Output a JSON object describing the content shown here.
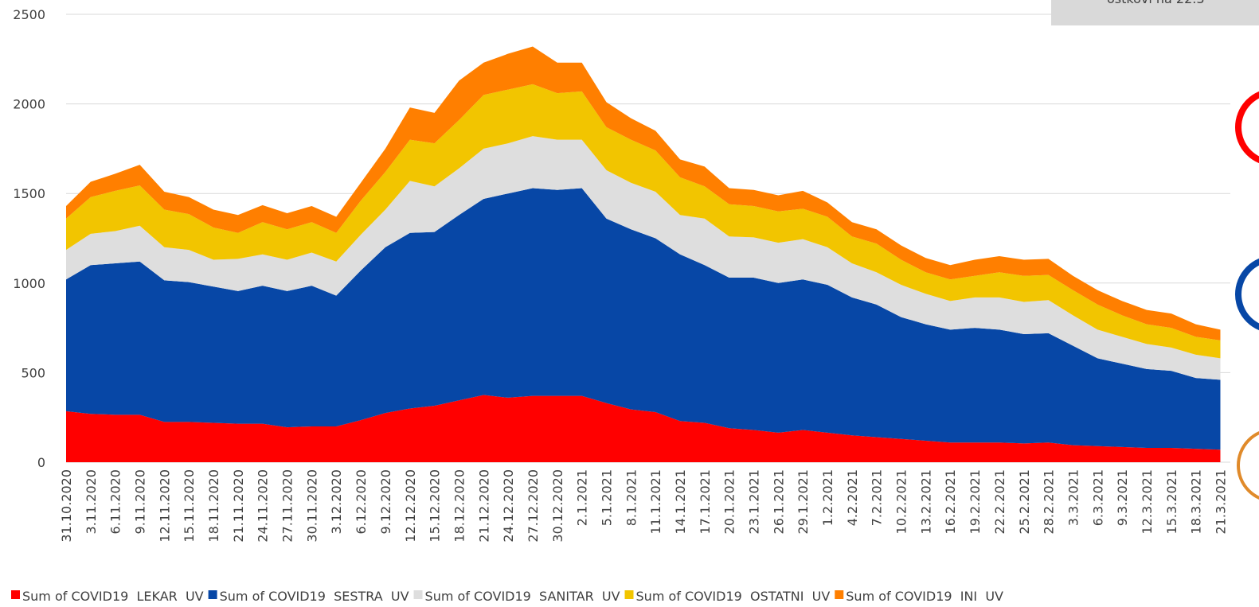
{
  "chart_data": {
    "type": "stacked_area",
    "annotation": "ostkovi na 22.3",
    "categories": [
      "31.10.2020",
      "3.11.2020",
      "6.11.2020",
      "9.11.2020",
      "12.11.2020",
      "15.11.2020",
      "18.11.2020",
      "21.11.2020",
      "24.11.2020",
      "27.11.2020",
      "30.11.2020",
      "3.12.2020",
      "6.12.2020",
      "9.12.2020",
      "12.12.2020",
      "15.12.2020",
      "18.12.2020",
      "21.12.2020",
      "24.12.2020",
      "27.12.2020",
      "30.12.2020",
      "2.1.2021",
      "5.1.2021",
      "8.1.2021",
      "11.1.2021",
      "14.1.2021",
      "17.1.2021",
      "20.1.2021",
      "23.1.2021",
      "26.1.2021",
      "29.1.2021",
      "1.2.2021",
      "4.2.2021",
      "7.2.2021",
      "10.2.2021",
      "13.2.2021",
      "16.2.2021",
      "19.2.2021",
      "22.2.2021",
      "25.2.2021",
      "28.2.2021",
      "3.3.2021",
      "6.3.2021",
      "9.3.2021",
      "12.3.2021",
      "15.3.2021",
      "18.3.2021",
      "21.3.2021"
    ],
    "series": [
      {
        "name": "Sum of COVID19  LEKAR  UV",
        "color": "#ff0000",
        "values": [
          285,
          270,
          265,
          265,
          225,
          225,
          220,
          215,
          215,
          195,
          200,
          200,
          235,
          275,
          300,
          315,
          345,
          375,
          360,
          370,
          370,
          370,
          330,
          295,
          280,
          230,
          220,
          190,
          180,
          165,
          180,
          165,
          150,
          140,
          130,
          120,
          110,
          110,
          110,
          105,
          110,
          95,
          90,
          85,
          80,
          80,
          75,
          70
        ]
      },
      {
        "name": "Sum of COVID19  SESTRA  UV",
        "color": "#0747a6",
        "values": [
          735,
          830,
          845,
          855,
          790,
          780,
          760,
          740,
          770,
          760,
          785,
          730,
          835,
          925,
          980,
          970,
          1035,
          1095,
          1140,
          1160,
          1150,
          1160,
          1030,
          1005,
          970,
          930,
          880,
          840,
          850,
          835,
          840,
          825,
          770,
          740,
          680,
          650,
          630,
          640,
          630,
          610,
          610,
          555,
          490,
          465,
          440,
          430,
          395,
          390
        ]
      },
      {
        "name": "Sum of COVID19  SANITAR  UV",
        "color": "#dedede",
        "values": [
          165,
          175,
          180,
          200,
          185,
          180,
          150,
          180,
          175,
          175,
          185,
          190,
          200,
          210,
          290,
          255,
          260,
          280,
          280,
          290,
          280,
          270,
          270,
          260,
          260,
          220,
          260,
          230,
          225,
          225,
          225,
          210,
          190,
          180,
          180,
          170,
          160,
          170,
          180,
          180,
          185,
          170,
          160,
          150,
          140,
          130,
          130,
          120
        ]
      },
      {
        "name": "Sum of COVID19  OSTATNI  UV",
        "color": "#f2c500",
        "values": [
          175,
          205,
          225,
          225,
          210,
          200,
          180,
          145,
          180,
          170,
          170,
          160,
          190,
          210,
          230,
          240,
          270,
          300,
          300,
          290,
          260,
          270,
          240,
          240,
          230,
          210,
          180,
          180,
          175,
          175,
          170,
          170,
          150,
          160,
          140,
          120,
          120,
          120,
          140,
          145,
          140,
          140,
          140,
          120,
          110,
          110,
          100,
          100
        ]
      },
      {
        "name": "Sum of COVID19  INI  UV",
        "color": "#ff7f00",
        "values": [
          70,
          85,
          95,
          115,
          100,
          95,
          100,
          100,
          95,
          90,
          90,
          90,
          100,
          130,
          180,
          170,
          220,
          180,
          200,
          210,
          170,
          160,
          140,
          120,
          110,
          100,
          110,
          90,
          90,
          90,
          100,
          80,
          80,
          80,
          80,
          80,
          80,
          90,
          90,
          90,
          90,
          80,
          80,
          80,
          80,
          80,
          70,
          60
        ]
      }
    ],
    "ylim": [
      0,
      2500
    ],
    "yticks": [
      0,
      500,
      1000,
      1500,
      2000,
      2500
    ],
    "grid": true
  }
}
